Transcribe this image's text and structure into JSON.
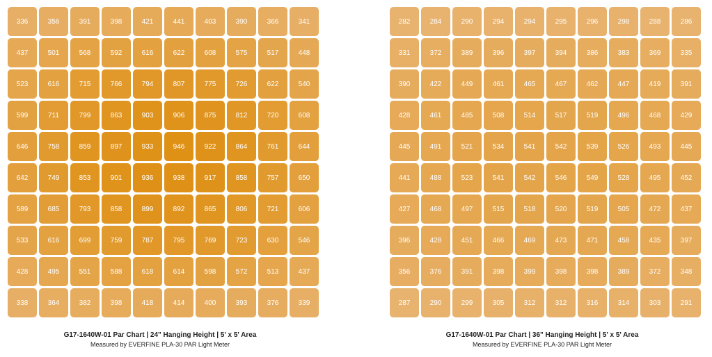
{
  "chart_data": [
    {
      "type": "heatmap",
      "title": "G17-1640W-01 Par Chart | 24\" Hanging Height |  5' x 5' Area",
      "subtitle": "Measured by EVERFINE PLA-30 PAR Light Meter",
      "rows": 10,
      "cols": 10,
      "color_low": "#e8b36f",
      "color_high": "#df9116",
      "values": [
        [
          336,
          356,
          391,
          398,
          421,
          441,
          403,
          390,
          366,
          341
        ],
        [
          437,
          501,
          568,
          592,
          616,
          622,
          608,
          575,
          517,
          448
        ],
        [
          523,
          616,
          715,
          766,
          794,
          807,
          775,
          726,
          622,
          540
        ],
        [
          599,
          711,
          799,
          863,
          903,
          906,
          875,
          812,
          720,
          608
        ],
        [
          646,
          758,
          859,
          897,
          933,
          946,
          922,
          864,
          761,
          644
        ],
        [
          642,
          749,
          853,
          901,
          936,
          938,
          917,
          858,
          757,
          650
        ],
        [
          589,
          685,
          793,
          858,
          899,
          892,
          865,
          806,
          721,
          606
        ],
        [
          533,
          616,
          699,
          759,
          787,
          795,
          769,
          723,
          630,
          546
        ],
        [
          428,
          495,
          551,
          588,
          618,
          614,
          598,
          572,
          513,
          437
        ],
        [
          338,
          364,
          382,
          398,
          418,
          414,
          400,
          393,
          376,
          339
        ]
      ]
    },
    {
      "type": "heatmap",
      "title": "G17-1640W-01 Par Chart | 36\" Hanging Height |  5' x 5' Area",
      "subtitle": "Measured by EVERFINE PLA-30 PAR Light Meter",
      "rows": 10,
      "cols": 10,
      "color_low": "#e8b36f",
      "color_high": "#df9116",
      "values": [
        [
          282,
          284,
          290,
          294,
          294,
          295,
          296,
          298,
          288,
          286
        ],
        [
          331,
          372,
          389,
          396,
          397,
          394,
          386,
          383,
          369,
          335
        ],
        [
          390,
          422,
          449,
          461,
          465,
          467,
          462,
          447,
          419,
          391
        ],
        [
          428,
          461,
          485,
          508,
          514,
          517,
          519,
          496,
          468,
          429
        ],
        [
          445,
          491,
          521,
          534,
          541,
          542,
          539,
          526,
          493,
          445
        ],
        [
          441,
          488,
          523,
          541,
          542,
          546,
          549,
          528,
          495,
          452
        ],
        [
          427,
          468,
          497,
          515,
          518,
          520,
          519,
          505,
          472,
          437
        ],
        [
          396,
          428,
          451,
          466,
          469,
          473,
          471,
          458,
          435,
          397
        ],
        [
          356,
          376,
          391,
          398,
          399,
          398,
          398,
          389,
          372,
          348
        ],
        [
          287,
          290,
          299,
          305,
          312,
          312,
          316,
          314,
          303,
          291
        ]
      ]
    }
  ]
}
